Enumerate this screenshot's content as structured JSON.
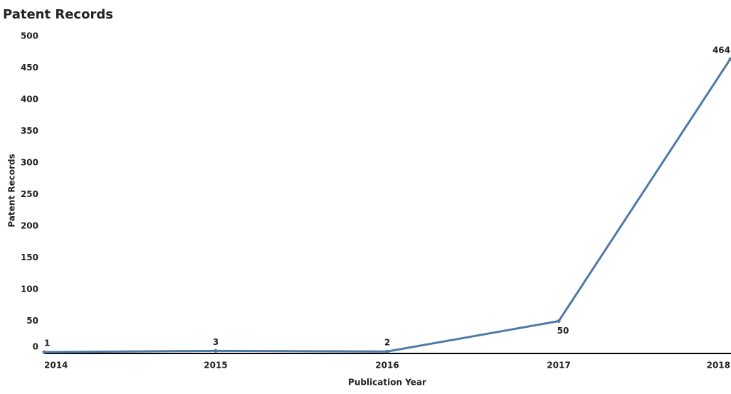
{
  "chart_data": {
    "type": "line",
    "title": "Patent Records",
    "x_label": "Publication Year",
    "y_label": "Patent Records",
    "x": [
      2014,
      2015,
      2016,
      2017,
      2018
    ],
    "series": [
      {
        "name": "Patent Records",
        "color": "#5079a5",
        "values": [
          1,
          3,
          2,
          50,
          464
        ]
      }
    ],
    "xlim": [
      2014,
      2018
    ],
    "xticks": [
      2014,
      2015,
      2016,
      2017,
      2018
    ],
    "ylim": [
      0,
      500
    ],
    "yticks": [
      0,
      50,
      100,
      150,
      200,
      250,
      300,
      350,
      400,
      450,
      500
    ],
    "grid": false
  }
}
